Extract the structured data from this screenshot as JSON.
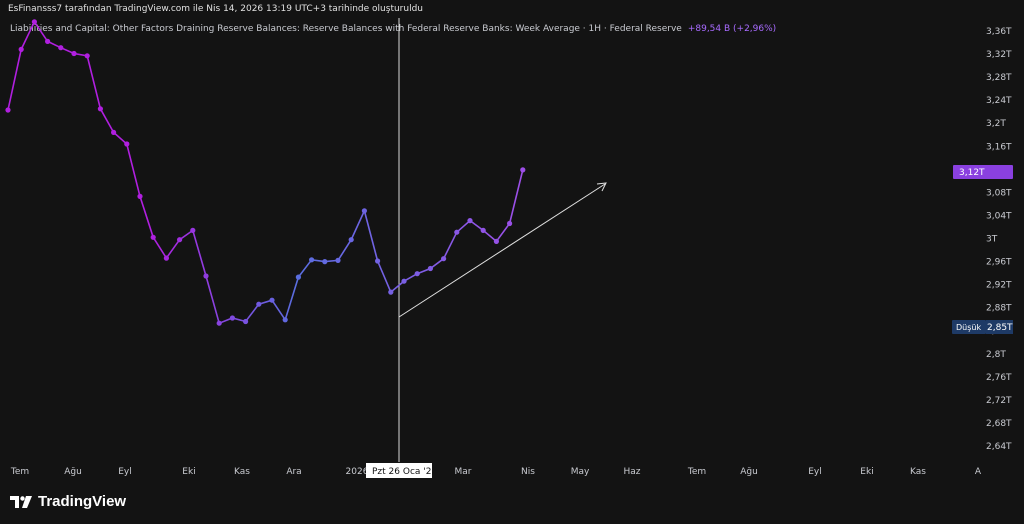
{
  "header": {
    "attribution": "EsFinansss7 tarafından TradingView.com ile Nis 14, 2026 13:19 UTC+3 tarihinde oluşturuldu"
  },
  "footer": {
    "brand": "TradingView",
    "logo_icon": "tradingview-logo-icon"
  },
  "chart_data": {
    "type": "line",
    "title": "Liabilities and Capital: Other Factors Draining Reserve Balances: Reserve Balances with Federal Reserve Banks: Week Average · 1H · Federal Reserve",
    "change": "+89,54 B (+2,96%)",
    "xlabel": "",
    "ylabel": "",
    "unit": "T",
    "ylim": [
      2.62,
      3.38
    ],
    "y_ticks": [
      "3,36T",
      "3,32T",
      "3,28T",
      "3,24T",
      "3,2T",
      "3,16T",
      "3,12T",
      "3,08T",
      "3,04T",
      "3T",
      "2,96T",
      "2,92T",
      "2,88T",
      "2,84T",
      "2,8T",
      "2,76T",
      "2,72T",
      "2,68T",
      "2,64T"
    ],
    "x_ticks": [
      "Tem",
      "Ağu",
      "Eyl",
      "Eki",
      "Kas",
      "Ara",
      "2026",
      "Mar",
      "Nis",
      "May",
      "Haz",
      "Tem",
      "Ağu",
      "Eyl",
      "Eki",
      "Kas",
      "A"
    ],
    "series": [
      {
        "name": "",
        "values": [
          3.223,
          3.328,
          3.376,
          3.342,
          3.331,
          3.321,
          3.317,
          3.225,
          3.184,
          3.164,
          3.073,
          3.002,
          2.966,
          2.998,
          3.014,
          2.935,
          2.853,
          2.862,
          2.856,
          2.886,
          2.893,
          2.859,
          2.933,
          2.963,
          2.96,
          2.962,
          2.998,
          3.048,
          2.961,
          2.907,
          2.926,
          2.939,
          2.948,
          2.965,
          3.011,
          3.031,
          3.014,
          2.995,
          3.026,
          3.119
        ]
      }
    ],
    "last_value_label": "3,12T",
    "low_label": "Düşük",
    "low_value_label": "2,85T",
    "crosshair_label": "Pzt 26 Oca '26",
    "gradient_colors": [
      "#b11fe0",
      "#5a6ee0",
      "#a24ce8"
    ],
    "annotation": "trend-arrow"
  }
}
